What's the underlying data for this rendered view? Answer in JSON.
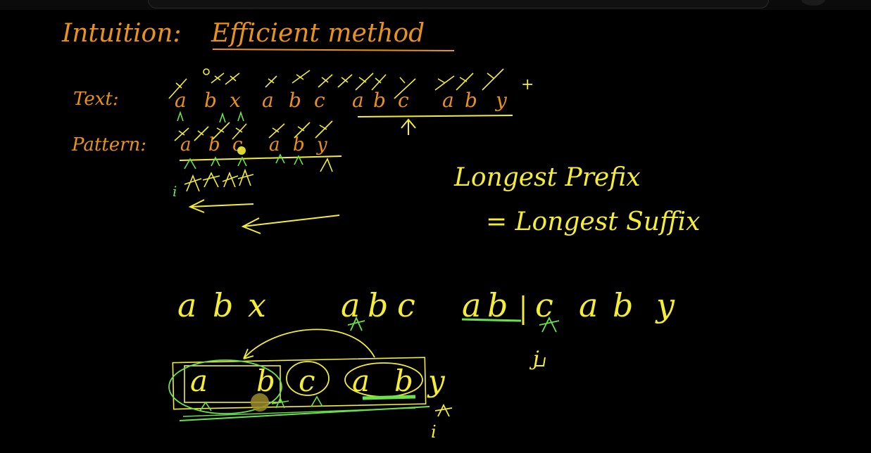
{
  "whiteboard": {
    "heading_label": "Intuition:",
    "heading_text": "Efficient method",
    "text_label": "Text:",
    "text_string": "abxabcabcaby",
    "text_letters": [
      "a",
      "b",
      "x",
      "a",
      "b",
      "c",
      "a",
      "b",
      "c",
      "a",
      "b",
      "y"
    ],
    "pattern_label": "Pattern:",
    "pattern_letters": [
      "a",
      "b",
      "c",
      "a",
      "b",
      "y"
    ],
    "note_line1": "Longest Prefix",
    "note_line2": "= Longest Suffix",
    "example_letters": [
      "a",
      "b",
      "x",
      "a",
      "b",
      "c",
      "a",
      "b",
      "c",
      "a",
      "b",
      "y"
    ],
    "index_i": "i",
    "index_j": "j",
    "plus": "+"
  },
  "colors": {
    "background": "#000000",
    "orange": "#e8921c",
    "yellow": "#f3ee35",
    "green": "#6be24a",
    "cursor": "#9a8a2a"
  },
  "icons": {
    "cursor": "pointer-dot-icon"
  }
}
